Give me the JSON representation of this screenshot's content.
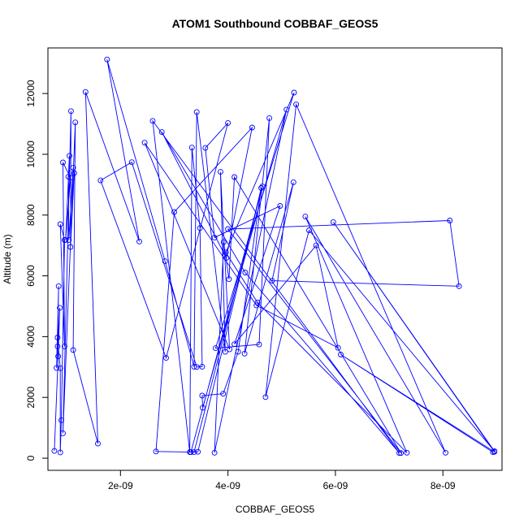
{
  "chart_data": {
    "type": "line",
    "title": "ATOM1 Southbound COBBAF_GEOS5",
    "xlabel": "COBBAF_GEOS5",
    "ylabel": "Altitude (m)",
    "xlim": [
      6.5e-10,
      9.1e-09
    ],
    "ylim": [
      -400,
      13500
    ],
    "x_ticks": [
      2e-09,
      4e-09,
      6e-09,
      8e-09
    ],
    "x_tick_labels": [
      "2e-09",
      "4e-09",
      "6e-09",
      "8e-09"
    ],
    "y_ticks": [
      0,
      2000,
      4000,
      6000,
      8000,
      10000,
      12000
    ],
    "y_tick_labels": [
      "0",
      "2000",
      "4000",
      "6000",
      "8000",
      "10000",
      "12000"
    ],
    "grid": false,
    "marker": "open-circle",
    "line_color": "#0000ff",
    "series": [
      {
        "points": [
          [
            7.7e-10,
            240
          ],
          [
            8.4e-10,
            3350
          ],
          [
            8.7e-10,
            4950
          ],
          [
            8.1e-10,
            2970
          ],
          [
            8.5e-10,
            5660
          ],
          [
            8.3e-10,
            3680
          ],
          [
            8.3e-10,
            3970
          ],
          [
            8.8e-10,
            2960
          ],
          [
            8.8e-10,
            190
          ],
          [
            9e-10,
            1250
          ],
          [
            9.6e-10,
            7180
          ],
          [
            8.8e-10,
            7700
          ],
          [
            9.6e-10,
            3680
          ],
          [
            9.3e-10,
            9730
          ],
          [
            1.07e-09,
            9230
          ],
          [
            9.8e-10,
            7180
          ],
          [
            1.05e-09,
            9950
          ],
          [
            1.03e-09,
            9260
          ],
          [
            1.04e-09,
            7180
          ],
          [
            1.12e-09,
            9560
          ],
          [
            1.14e-09,
            9380
          ],
          [
            1.07e-09,
            6950
          ],
          [
            1.08e-09,
            11420
          ],
          [
            9.3e-10,
            820
          ],
          [
            1.16e-09,
            11050
          ],
          [
            1.12e-09,
            3560
          ],
          [
            1.58e-09,
            480
          ],
          [
            1.35e-09,
            12050
          ],
          [
            2.35e-09,
            7130
          ],
          [
            1.75e-09,
            13120
          ],
          [
            2.83e-09,
            6480
          ],
          [
            3.37e-09,
            3010
          ],
          [
            3.42e-09,
            11390
          ],
          [
            3.95e-09,
            3500
          ],
          [
            3.86e-09,
            9420
          ],
          [
            4.03e-09,
            3580
          ],
          [
            2.45e-09,
            10380
          ],
          [
            4.53e-09,
            5030
          ],
          [
            6.05e-09,
            3630
          ],
          [
            5.64e-09,
            7000
          ],
          [
            4.12e-09,
            3750
          ],
          [
            4.97e-09,
            8300
          ],
          [
            3.75e-09,
            7260
          ],
          [
            3.58e-09,
            10210
          ],
          [
            4e-09,
            11030
          ],
          [
            2.85e-09,
            3300
          ],
          [
            1.63e-09,
            9140
          ],
          [
            2.21e-09,
            9740
          ],
          [
            3.42e-09,
            3000
          ],
          [
            3.52e-09,
            3010
          ],
          [
            3.48e-09,
            7570
          ],
          [
            3.33e-09,
            10220
          ],
          [
            3.29e-09,
            200
          ],
          [
            2.6e-09,
            11100
          ],
          [
            7.19e-09,
            170
          ],
          [
            4.32e-09,
            6110
          ],
          [
            2.77e-09,
            10730
          ],
          [
            3.97e-09,
            6590
          ],
          [
            4.45e-09,
            10880
          ],
          [
            3e-09,
            8100
          ],
          [
            2.66e-09,
            220
          ],
          [
            3.37e-09,
            200
          ],
          [
            4.64e-09,
            8940
          ],
          [
            3.31e-09,
            200
          ],
          [
            3.44e-09,
            210
          ],
          [
            4.62e-09,
            8890
          ],
          [
            4.19e-09,
            3500
          ],
          [
            3.91e-09,
            2120
          ],
          [
            3.52e-09,
            2060
          ],
          [
            3.53e-09,
            1660
          ],
          [
            5.09e-09,
            11470
          ],
          [
            3.75e-09,
            180
          ],
          [
            3.92e-09,
            7110
          ],
          [
            4.02e-09,
            5890
          ],
          [
            4.12e-09,
            9250
          ],
          [
            7.22e-09,
            170
          ],
          [
            4e-09,
            7540
          ],
          [
            8.13e-09,
            7820
          ],
          [
            8.3e-09,
            5660
          ],
          [
            4.82e-09,
            5840
          ],
          [
            5.22e-09,
            9080
          ],
          [
            4.31e-09,
            3440
          ],
          [
            4.77e-09,
            11190
          ],
          [
            4.58e-09,
            3740
          ],
          [
            3.77e-09,
            3620
          ],
          [
            5.23e-09,
            12030
          ],
          [
            3.96e-09,
            6770
          ],
          [
            4.55e-09,
            5120
          ],
          [
            7.33e-09,
            180
          ],
          [
            5.44e-09,
            7950
          ],
          [
            8.05e-09,
            180
          ],
          [
            5.27e-09,
            11640
          ],
          [
            4.7e-09,
            2010
          ],
          [
            5.51e-09,
            7500
          ],
          [
            8.96e-09,
            230
          ],
          [
            5.96e-09,
            7770
          ],
          [
            8.96e-09,
            210
          ],
          [
            6.1e-09,
            3410
          ],
          [
            8.93e-09,
            200
          ]
        ]
      }
    ]
  }
}
